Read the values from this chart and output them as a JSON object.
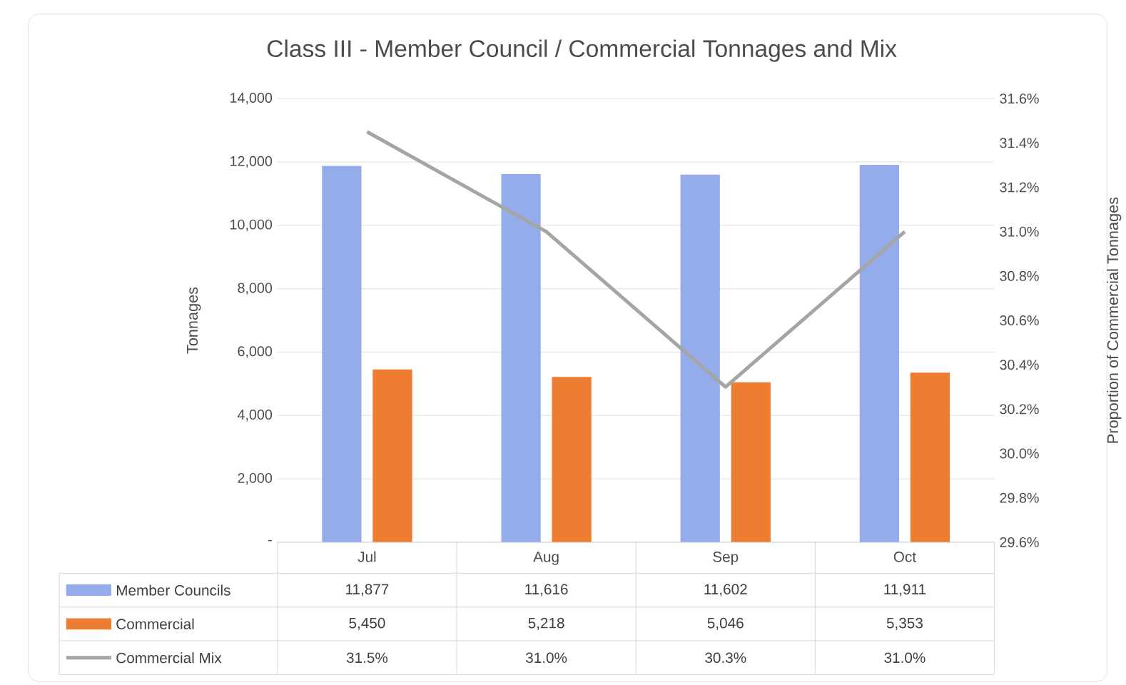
{
  "chart_data": {
    "type": "bar",
    "title": "Class III - Member Council / Commercial Tonnages and Mix",
    "ylabel": "Tonnages",
    "y2label": "Proportion of Commercial Tonnages",
    "categories": [
      "Jul",
      "Aug",
      "Sep",
      "Oct"
    ],
    "series": [
      {
        "name": "Member Councils",
        "color": "#94acea",
        "values": [
          11877,
          11616,
          11602,
          11911
        ],
        "value_labels": [
          "11,877",
          "11,616",
          "11,602",
          "11,911"
        ]
      },
      {
        "name": "Commercial",
        "color": "#ed7d31",
        "values": [
          5450,
          5218,
          5046,
          5353
        ],
        "value_labels": [
          "5,450",
          "5,218",
          "5,046",
          "5,353"
        ]
      },
      {
        "name": "Commercial Mix",
        "type": "line",
        "axis": "y2",
        "color": "#a5a5a5",
        "values": [
          31.45,
          31.0,
          30.3,
          31.0
        ],
        "value_labels": [
          "31.5%",
          "31.0%",
          "30.3%",
          "31.0%"
        ]
      }
    ],
    "ylim": [
      0,
      14000
    ],
    "yticks": [
      {
        "value": 0,
        "label": "-"
      },
      {
        "value": 2000,
        "label": "2,000"
      },
      {
        "value": 4000,
        "label": "4,000"
      },
      {
        "value": 6000,
        "label": "6,000"
      },
      {
        "value": 8000,
        "label": "8,000"
      },
      {
        "value": 10000,
        "label": "10,000"
      },
      {
        "value": 12000,
        "label": "12,000"
      },
      {
        "value": 14000,
        "label": "14,000"
      }
    ],
    "y2lim": [
      29.6,
      31.6
    ],
    "y2ticks": [
      {
        "value": 29.6,
        "label": "29.6%"
      },
      {
        "value": 29.8,
        "label": "29.8%"
      },
      {
        "value": 30.0,
        "label": "30.0%"
      },
      {
        "value": 30.2,
        "label": "30.2%"
      },
      {
        "value": 30.4,
        "label": "30.4%"
      },
      {
        "value": 30.6,
        "label": "30.6%"
      },
      {
        "value": 30.8,
        "label": "30.8%"
      },
      {
        "value": 31.0,
        "label": "31.0%"
      },
      {
        "value": 31.2,
        "label": "31.2%"
      },
      {
        "value": 31.4,
        "label": "31.4%"
      },
      {
        "value": 31.6,
        "label": "31.6%"
      }
    ],
    "grid": "y",
    "legend": "bottom left"
  }
}
